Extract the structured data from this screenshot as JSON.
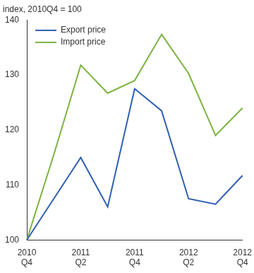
{
  "chart_data": {
    "type": "line",
    "y_label": "index, 2010Q4 = 100",
    "categories": [
      "2010\nQ4",
      null,
      "2011\nQ2",
      null,
      "2011\nQ4",
      null,
      "2012\nQ2",
      null,
      "2012\nQ4"
    ],
    "series": [
      {
        "name": "Export price",
        "color": "#2f5fb3",
        "values": [
          100,
          107.5,
          115,
          106,
          127.5,
          123.5,
          107.5,
          106.5,
          111.7
        ]
      },
      {
        "name": "Import price",
        "color": "#7cb342",
        "values": [
          100,
          115.5,
          131.8,
          126.7,
          129,
          137.4,
          130.3,
          119,
          124
        ]
      }
    ],
    "ylim": [
      100,
      140
    ],
    "yticks": [
      100,
      110,
      120,
      130,
      140
    ],
    "grid": false,
    "legend": "upper left"
  }
}
